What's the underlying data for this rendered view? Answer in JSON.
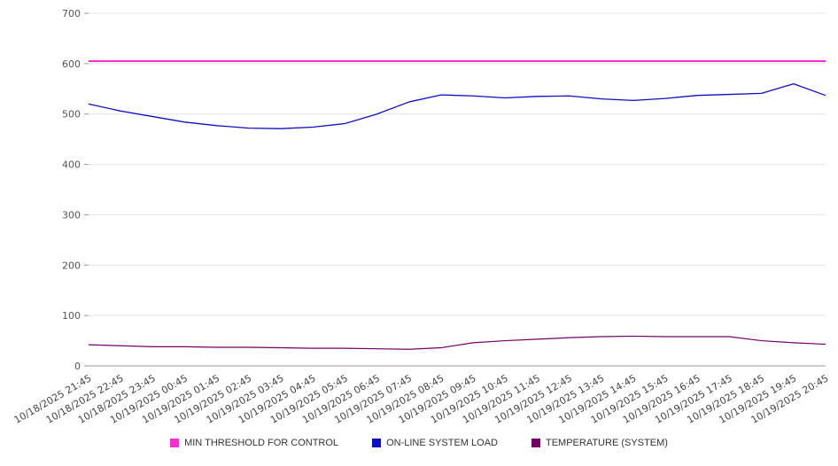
{
  "chart_data": {
    "type": "line",
    "title": "",
    "xlabel": "",
    "ylabel": "",
    "ylim": [
      0,
      700
    ],
    "ytick_step": 100,
    "grid": true,
    "legend_position": "bottom",
    "x": [
      "10/18/2025 21:45",
      "10/18/2025 22:45",
      "10/18/2025 23:45",
      "10/19/2025 00:45",
      "10/19/2025 01:45",
      "10/19/2025 02:45",
      "10/19/2025 03:45",
      "10/19/2025 04:45",
      "10/19/2025 05:45",
      "10/19/2025 06:45",
      "10/19/2025 07:45",
      "10/19/2025 08:45",
      "10/19/2025 09:45",
      "10/19/2025 10:45",
      "10/19/2025 11:45",
      "10/19/2025 12:45",
      "10/19/2025 13:45",
      "10/19/2025 14:45",
      "10/19/2025 15:45",
      "10/19/2025 16:45",
      "10/19/2025 17:45",
      "10/19/2025 18:45",
      "10/19/2025 19:45",
      "10/19/2025 20:45"
    ],
    "series": [
      {
        "name": "MIN THRESHOLD FOR CONTROL",
        "color": "#ff2bd1",
        "width": 2,
        "values": [
          605,
          605,
          605,
          605,
          605,
          605,
          605,
          605,
          605,
          605,
          605,
          605,
          605,
          605,
          605,
          605,
          605,
          605,
          605,
          605,
          605,
          605,
          605,
          605
        ]
      },
      {
        "name": "ON-LINE SYSTEM LOAD",
        "color": "#0f0fc4",
        "width": 1.3,
        "values": [
          520,
          506,
          495,
          484,
          477,
          472,
          471,
          474,
          481,
          500,
          524,
          538,
          536,
          532,
          535,
          536,
          530,
          527,
          531,
          537,
          539,
          541,
          560,
          537
        ]
      },
      {
        "name": "TEMPERATURE (SYSTEM)",
        "color": "#730066",
        "width": 1.2,
        "values": [
          42,
          40,
          38,
          38,
          37,
          37,
          36,
          35,
          35,
          34,
          33,
          36,
          46,
          50,
          53,
          56,
          58,
          59,
          58,
          58,
          58,
          50,
          46,
          43
        ]
      }
    ]
  },
  "legend": {
    "items": [
      {
        "label": "MIN THRESHOLD FOR CONTROL"
      },
      {
        "label": "ON-LINE SYSTEM LOAD"
      },
      {
        "label": "TEMPERATURE (SYSTEM)"
      }
    ]
  }
}
